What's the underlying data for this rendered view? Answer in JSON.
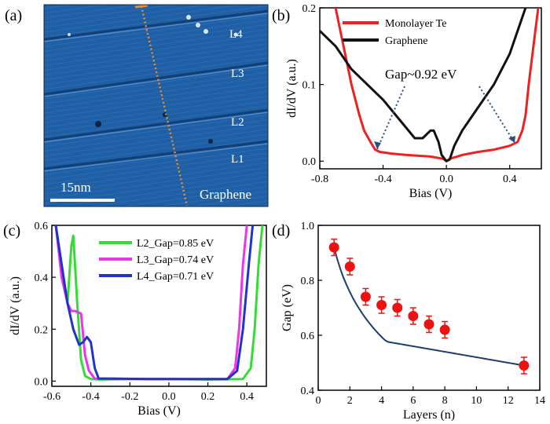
{
  "panel_a": {
    "label": "(a)",
    "layer_labels": [
      "L4",
      "L3",
      "L2",
      "L1",
      "Graphene"
    ],
    "scale_bar": "15nm",
    "colors": {
      "surface": "#1f5fa6",
      "line_cut": "#f08c28",
      "text": "#ffffff"
    }
  },
  "chart_data": [
    {
      "panel": "(b)",
      "type": "line",
      "xlabel": "Bias (V)",
      "ylabel": "dI/dV (a.u.)",
      "xlim": [
        -0.8,
        0.6
      ],
      "ylim": [
        -0.01,
        0.2
      ],
      "xticks": [
        -0.8,
        -0.4,
        0.0,
        0.4
      ],
      "xtick_labels": [
        "-0.8",
        "-0.4",
        "0.0",
        "0.4"
      ],
      "yticks": [
        0.0,
        0.1,
        0.2
      ],
      "ytick_labels": [
        "0.0",
        "0.1",
        "0.2"
      ],
      "legend_position": "top-right",
      "annotation": "Gap~0.92 eV",
      "series": [
        {
          "name": "Monolayer Te",
          "color": "#ee2020",
          "x": [
            -0.7,
            -0.65,
            -0.6,
            -0.55,
            -0.52,
            -0.48,
            -0.45,
            -0.42,
            -0.35,
            -0.25,
            -0.1,
            -0.02,
            0.0,
            0.02,
            0.1,
            0.2,
            0.3,
            0.4,
            0.45,
            0.48,
            0.5,
            0.52,
            0.55,
            0.58
          ],
          "y": [
            0.2,
            0.15,
            0.1,
            0.06,
            0.04,
            0.025,
            0.015,
            0.012,
            0.01,
            0.008,
            0.006,
            0.003,
            0.0,
            0.003,
            0.008,
            0.012,
            0.015,
            0.02,
            0.025,
            0.04,
            0.06,
            0.1,
            0.15,
            0.2
          ]
        },
        {
          "name": "Graphene",
          "color": "#111111",
          "x": [
            -0.8,
            -0.7,
            -0.6,
            -0.5,
            -0.4,
            -0.3,
            -0.2,
            -0.15,
            -0.1,
            -0.08,
            -0.05,
            -0.03,
            0.0,
            0.02,
            0.05,
            0.1,
            0.2,
            0.3,
            0.4,
            0.45,
            0.5
          ],
          "y": [
            0.17,
            0.15,
            0.12,
            0.1,
            0.08,
            0.055,
            0.03,
            0.03,
            0.04,
            0.04,
            0.025,
            0.008,
            0.0,
            0.002,
            0.02,
            0.04,
            0.07,
            0.1,
            0.14,
            0.17,
            0.2
          ]
        }
      ]
    },
    {
      "panel": "(c)",
      "type": "line",
      "xlabel": "Bias (V)",
      "ylabel": "dI/dV (a.u.)",
      "xlim": [
        -0.6,
        0.5
      ],
      "ylim": [
        -0.02,
        0.6
      ],
      "xticks": [
        -0.6,
        -0.4,
        -0.2,
        0.0,
        0.2,
        0.4
      ],
      "xtick_labels": [
        "-0.6",
        "-0.4",
        "-0.2",
        "0.0",
        "0.2",
        "0.4"
      ],
      "yticks": [
        0.0,
        0.2,
        0.4,
        0.6
      ],
      "ytick_labels": [
        "0.0",
        "0.2",
        "0.4",
        "0.6"
      ],
      "legend_position": "top-center",
      "series": [
        {
          "name": "L2_Gap=0.85 eV",
          "color": "#33dd33",
          "x": [
            -0.58,
            -0.54,
            -0.52,
            -0.5,
            -0.49,
            -0.47,
            -0.45,
            -0.43,
            -0.4,
            -0.35,
            -0.2,
            0.0,
            0.2,
            0.38,
            0.42,
            0.44,
            0.46,
            0.48
          ],
          "y": [
            0.6,
            0.4,
            0.3,
            0.52,
            0.56,
            0.3,
            0.08,
            0.02,
            0.008,
            0.006,
            0.008,
            0.008,
            0.006,
            0.008,
            0.05,
            0.2,
            0.45,
            0.6
          ]
        },
        {
          "name": "L3_Gap=0.74 eV",
          "color": "#ee33ee",
          "x": [
            -0.58,
            -0.55,
            -0.52,
            -0.5,
            -0.48,
            -0.45,
            -0.43,
            -0.41,
            -0.38,
            -0.3,
            -0.1,
            0.1,
            0.3,
            0.34,
            0.36,
            0.38,
            0.4
          ],
          "y": [
            0.6,
            0.4,
            0.3,
            0.27,
            0.27,
            0.26,
            0.1,
            0.04,
            0.01,
            0.008,
            0.008,
            0.008,
            0.008,
            0.05,
            0.2,
            0.45,
            0.6
          ]
        },
        {
          "name": "L4_Gap=0.71 eV",
          "color": "#2233cc",
          "x": [
            -0.58,
            -0.55,
            -0.52,
            -0.49,
            -0.46,
            -0.44,
            -0.42,
            -0.4,
            -0.38,
            -0.36,
            -0.3,
            -0.1,
            0.1,
            0.3,
            0.35,
            0.38,
            0.41,
            0.43
          ],
          "y": [
            0.6,
            0.45,
            0.3,
            0.2,
            0.14,
            0.15,
            0.17,
            0.15,
            0.05,
            0.01,
            0.01,
            0.008,
            0.008,
            0.008,
            0.04,
            0.2,
            0.45,
            0.6
          ]
        }
      ]
    },
    {
      "panel": "(d)",
      "type": "scatter",
      "xlabel": "Layers (n)",
      "ylabel": "Gap (eV)",
      "xlim": [
        0,
        14
      ],
      "ylim": [
        0.4,
        1.0
      ],
      "xticks": [
        0,
        2,
        4,
        6,
        8,
        10,
        12,
        14
      ],
      "xtick_labels": [
        "0",
        "2",
        "4",
        "6",
        "8",
        "10",
        "12",
        "14"
      ],
      "yticks": [
        0.4,
        0.6,
        0.8,
        1.0
      ],
      "ytick_labels": [
        "0.4",
        "0.6",
        "0.8",
        "1.0"
      ],
      "series": [
        {
          "marker_color": "#ee1111",
          "fit_color": "#1a3e6e",
          "x": [
            1,
            2,
            3,
            4,
            5,
            6,
            7,
            8,
            13
          ],
          "y": [
            0.92,
            0.85,
            0.74,
            0.71,
            0.7,
            0.67,
            0.64,
            0.62,
            0.49
          ],
          "yerr": [
            0.03,
            0.03,
            0.03,
            0.03,
            0.03,
            0.03,
            0.03,
            0.03,
            0.03
          ]
        }
      ]
    }
  ]
}
